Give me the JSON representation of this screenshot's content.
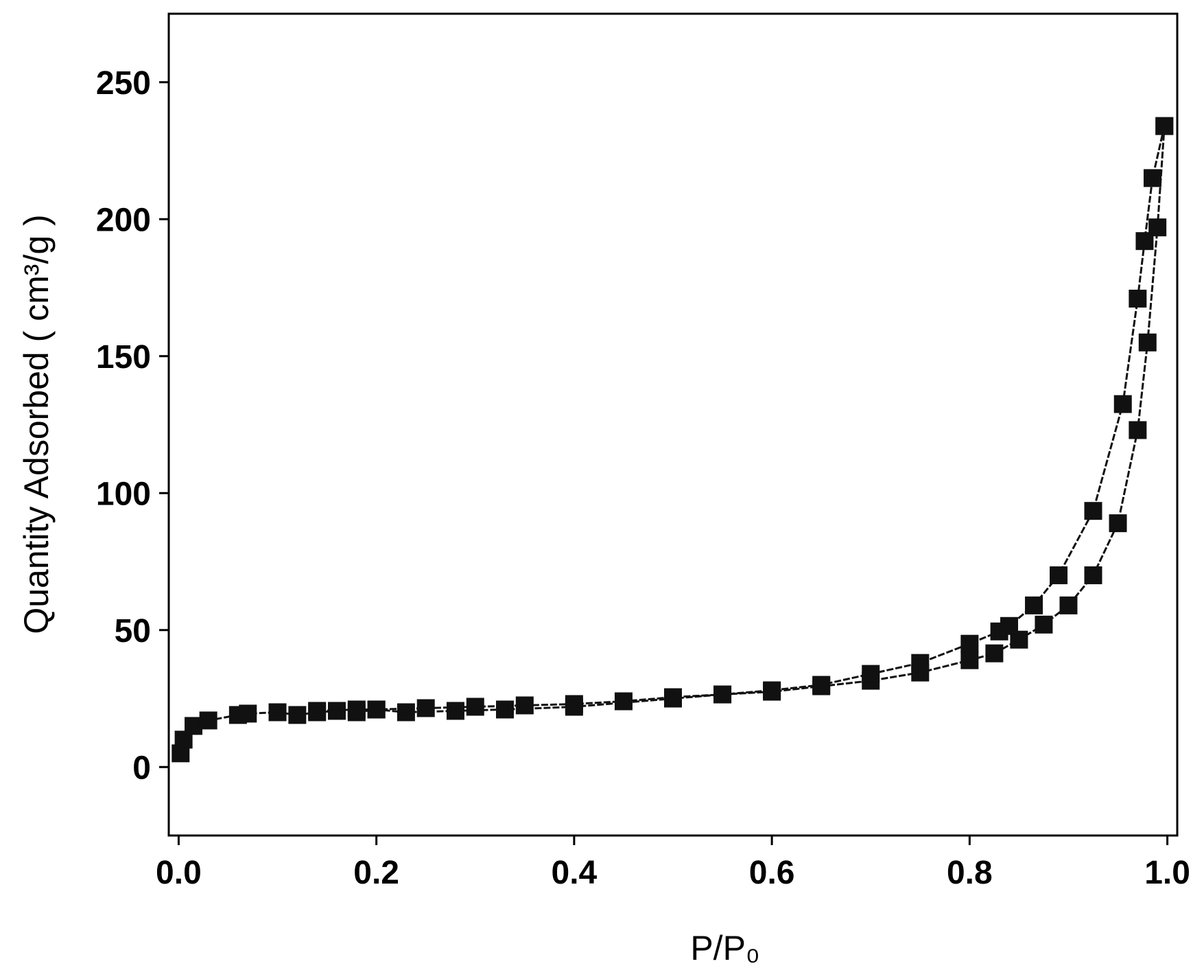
{
  "chart_data": {
    "type": "line",
    "xlabel": "P/P₀",
    "ylabel": "Quantity Adsorbed ( cm³/g )",
    "xlim": [
      -0.01,
      1.01
    ],
    "ylim": [
      -25,
      275
    ],
    "xticks": [
      {
        "value": 0,
        "label": "0.0"
      },
      0.2,
      0.4,
      0.6,
      0.8,
      {
        "value": 1,
        "label": "1.0"
      }
    ],
    "yticks": [
      0,
      50,
      100,
      150,
      200,
      250
    ],
    "marker": "square",
    "series": [
      {
        "color": "#111111",
        "x": [
          0.002,
          0.005,
          0.015,
          0.03,
          0.06,
          0.07,
          0.1,
          0.12,
          0.14,
          0.16,
          0.18,
          0.2,
          0.23,
          0.28,
          0.33,
          0.4,
          0.5,
          0.55,
          0.6,
          0.65,
          0.7,
          0.75,
          0.8,
          0.825,
          0.85,
          0.875,
          0.9,
          0.925,
          0.95,
          0.97,
          0.98,
          0.99,
          0.997
        ],
        "values": [
          5,
          10,
          15,
          17,
          19,
          19.5,
          20,
          19,
          20,
          20.5,
          20,
          21,
          20,
          20.5,
          21,
          22,
          25,
          26.5,
          27.5,
          29.5,
          31.5,
          34.5,
          39,
          41.5,
          46.5,
          52,
          59,
          70,
          89,
          123,
          155,
          197,
          234
        ]
      },
      {
        "color": "#111111",
        "x": [
          0.997,
          0.985,
          0.977,
          0.97,
          0.955,
          0.925,
          0.89,
          0.865,
          0.84,
          0.83,
          0.8,
          0.75,
          0.7,
          0.65,
          0.6,
          0.55,
          0.5,
          0.45,
          0.4,
          0.35,
          0.3,
          0.25,
          0.2,
          0.18,
          0.14
        ],
        "values": [
          234,
          215,
          192,
          171,
          132.5,
          93.5,
          70,
          59,
          51.5,
          49.5,
          45,
          38,
          34,
          30,
          28,
          26.5,
          25.5,
          24,
          23,
          22.5,
          22,
          21.5,
          21,
          21,
          20.5
        ]
      }
    ]
  }
}
